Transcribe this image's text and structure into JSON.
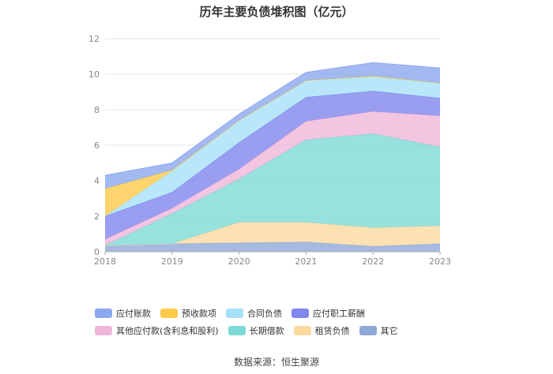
{
  "chart_data": {
    "type": "area",
    "stacked": true,
    "title": "历年主要负债堆积图（亿元）",
    "x": [
      "2018",
      "2019",
      "2020",
      "2021",
      "2022",
      "2023"
    ],
    "ylim": [
      0,
      12
    ],
    "yticks": [
      0,
      2,
      4,
      6,
      8,
      10,
      12
    ],
    "grid": true,
    "legend_position": "bottom",
    "series": [
      {
        "name": "其它",
        "color": "#8fa9d8",
        "values": [
          0.35,
          0.45,
          0.5,
          0.55,
          0.3,
          0.45
        ]
      },
      {
        "name": "租赁负债",
        "color": "#fbd9a0",
        "values": [
          0.0,
          0.0,
          1.15,
          1.1,
          1.05,
          1.0
        ]
      },
      {
        "name": "长期借款",
        "color": "#7dd9d6",
        "values": [
          0.0,
          1.7,
          2.45,
          4.65,
          5.3,
          4.45
        ]
      },
      {
        "name": "其他应付款(含利息和股利)",
        "color": "#f0b6d9",
        "values": [
          0.35,
          0.3,
          0.55,
          1.05,
          1.25,
          1.75
        ]
      },
      {
        "name": "应付职工薪酬",
        "color": "#7f86ee",
        "values": [
          1.3,
          0.9,
          1.5,
          1.35,
          1.15,
          1.0
        ]
      },
      {
        "name": "合同负债",
        "color": "#a7e1f8",
        "values": [
          0.0,
          1.2,
          1.25,
          0.95,
          0.8,
          0.85
        ]
      },
      {
        "name": "预收款项",
        "color": "#fdc94a",
        "values": [
          1.55,
          0.05,
          0.0,
          0.0,
          0.05,
          0.0
        ]
      },
      {
        "name": "应付账款",
        "color": "#8ca8ee",
        "values": [
          0.75,
          0.4,
          0.35,
          0.45,
          0.75,
          0.85
        ]
      }
    ],
    "legend_order": [
      "应付账款",
      "预收款项",
      "合同负债",
      "应付职工薪酬",
      "其他应付款(含利息和股利)",
      "长期借款",
      "租赁负债",
      "其它"
    ]
  },
  "source": "数据来源：恒生聚源"
}
